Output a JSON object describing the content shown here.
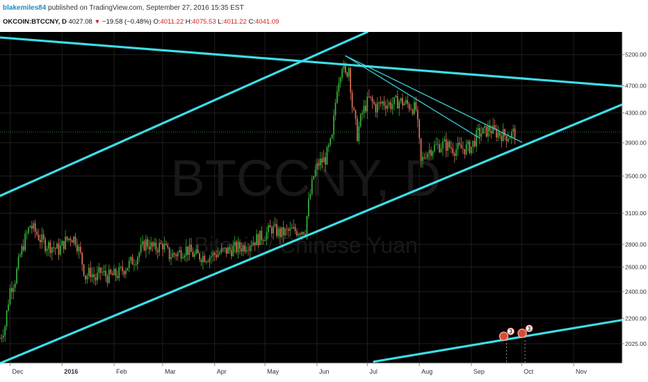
{
  "header": {
    "username": "blakemiles84",
    "published": " published on TradingView.com, September 27, 2016 15:35 EST",
    "symbol": "OKCOIN:BTCCNY, D",
    "last": "4027.08",
    "change": "−19.58 (−0.48%)",
    "o_label": "O:",
    "o_value": "4011.22",
    "h_label": "H:",
    "h_value": "4075.53",
    "l_label": "L:",
    "l_value": "4011.22",
    "c_label": "C:",
    "c_value": "4041.09"
  },
  "watermark": {
    "symbol": "BTCCNY, D",
    "name": "Bitcoin / Chinese Yuan"
  },
  "colors": {
    "background": "#000000",
    "up": "#3bb53b",
    "down": "#e0705b",
    "trendline": "#3ddde8",
    "price_line": "#2e8b2e"
  },
  "chart_data": {
    "type": "candlestick",
    "symbol": "OKCOIN:BTCCNY",
    "interval": "D",
    "scale": "log",
    "x_labels": [
      "Dec",
      "2016",
      "Feb",
      "Mar",
      "Apr",
      "May",
      "Jun",
      "Jul",
      "Aug",
      "Sep",
      "Oct",
      "Nov"
    ],
    "y_ticks": [
      "5200.00",
      "4700.00",
      "4300.00",
      "3900.00",
      "3500.00",
      "3100.00",
      "2800.00",
      "2600.00",
      "2400.00",
      "2200.00",
      "2025.00"
    ],
    "y_tick_values": [
      5200,
      4700,
      4300,
      3900,
      3500,
      3100,
      2800,
      2600,
      2400,
      2200,
      2025
    ],
    "ylim": [
      1900,
      5600
    ],
    "last_price_label": "4041.09",
    "last_price": 4041.09,
    "close_path": [
      [
        "2015-11-25",
        2060
      ],
      [
        "2015-11-28",
        2150
      ],
      [
        "2015-12-01",
        2420
      ],
      [
        "2015-12-04",
        2500
      ],
      [
        "2015-12-07",
        2700
      ],
      [
        "2015-12-10",
        2850
      ],
      [
        "2015-12-13",
        2980
      ],
      [
        "2015-12-16",
        2920
      ],
      [
        "2015-12-19",
        2850
      ],
      [
        "2015-12-22",
        2800
      ],
      [
        "2015-12-26",
        2780
      ],
      [
        "2015-12-30",
        2750
      ],
      [
        "2016-01-03",
        2830
      ],
      [
        "2016-01-06",
        2870
      ],
      [
        "2016-01-09",
        2850
      ],
      [
        "2016-01-12",
        2700
      ],
      [
        "2016-01-15",
        2520
      ],
      [
        "2016-01-18",
        2560
      ],
      [
        "2016-01-21",
        2500
      ],
      [
        "2016-01-24",
        2560
      ],
      [
        "2016-01-28",
        2520
      ],
      [
        "2016-02-03",
        2540
      ],
      [
        "2016-02-08",
        2600
      ],
      [
        "2016-02-14",
        2680
      ],
      [
        "2016-02-20",
        2820
      ],
      [
        "2016-02-25",
        2760
      ],
      [
        "2016-03-01",
        2800
      ],
      [
        "2016-03-05",
        2700
      ],
      [
        "2016-03-10",
        2720
      ],
      [
        "2016-03-15",
        2760
      ],
      [
        "2016-03-20",
        2700
      ],
      [
        "2016-03-28",
        2690
      ],
      [
        "2016-04-05",
        2730
      ],
      [
        "2016-04-12",
        2760
      ],
      [
        "2016-04-18",
        2780
      ],
      [
        "2016-04-24",
        2830
      ],
      [
        "2016-04-30",
        2880
      ],
      [
        "2016-05-05",
        2950
      ],
      [
        "2016-05-10",
        2900
      ],
      [
        "2016-05-15",
        2920
      ],
      [
        "2016-05-20",
        2930
      ],
      [
        "2016-05-25",
        2940
      ],
      [
        "2016-05-27",
        3200
      ],
      [
        "2016-05-30",
        3500
      ],
      [
        "2016-06-02",
        3650
      ],
      [
        "2016-06-06",
        3700
      ],
      [
        "2016-06-10",
        3950
      ],
      [
        "2016-06-13",
        4700
      ],
      [
        "2016-06-16",
        5050
      ],
      [
        "2016-06-18",
        4850
      ],
      [
        "2016-06-20",
        5000
      ],
      [
        "2016-06-22",
        4400
      ],
      [
        "2016-06-25",
        4000
      ],
      [
        "2016-06-28",
        4300
      ],
      [
        "2016-07-02",
        4500
      ],
      [
        "2016-07-06",
        4380
      ],
      [
        "2016-07-10",
        4450
      ],
      [
        "2016-07-15",
        4420
      ],
      [
        "2016-07-20",
        4470
      ],
      [
        "2016-07-25",
        4420
      ],
      [
        "2016-07-30",
        4350
      ],
      [
        "2016-08-02",
        3650
      ],
      [
        "2016-08-05",
        3780
      ],
      [
        "2016-08-10",
        3850
      ],
      [
        "2016-08-16",
        3880
      ],
      [
        "2016-08-22",
        3820
      ],
      [
        "2016-08-28",
        3830
      ],
      [
        "2016-09-01",
        3850
      ],
      [
        "2016-09-05",
        4020
      ],
      [
        "2016-09-09",
        4040
      ],
      [
        "2016-09-12",
        4080
      ],
      [
        "2016-09-15",
        4040
      ],
      [
        "2016-09-19",
        4010
      ],
      [
        "2016-09-22",
        3990
      ],
      [
        "2016-09-24",
        4000
      ],
      [
        "2016-09-27",
        4041
      ]
    ],
    "drawings": [
      {
        "name": "upper channel line",
        "points": [
          [
            "2015-11-25",
            3280
          ],
          [
            "2016-07-01",
            5600
          ]
        ]
      },
      {
        "name": "lower channel line",
        "points": [
          [
            "2015-11-25",
            1900
          ],
          [
            "2016-11-30",
            4420
          ]
        ]
      },
      {
        "name": "long descending resistance",
        "points": [
          [
            "2015-11-25",
            5500
          ],
          [
            "2016-11-30",
            4690
          ]
        ]
      },
      {
        "name": "short descending resistance",
        "points": [
          [
            "2016-06-18",
            5180
          ],
          [
            "2016-10-01",
            3910
          ]
        ]
      },
      {
        "name": "mid descending resistance",
        "points": [
          [
            "2016-06-18",
            5180
          ],
          [
            "2016-09-06",
            3960
          ]
        ]
      },
      {
        "name": "lower parallel line",
        "points": [
          [
            "2016-07-05",
            1910
          ],
          [
            "2016-12-01",
            2190
          ]
        ]
      }
    ],
    "event_markers": [
      {
        "date": "2016-09-22",
        "label": "3",
        "value": 2075
      },
      {
        "date": "2016-10-03",
        "label": "3",
        "value": 2095
      }
    ]
  }
}
